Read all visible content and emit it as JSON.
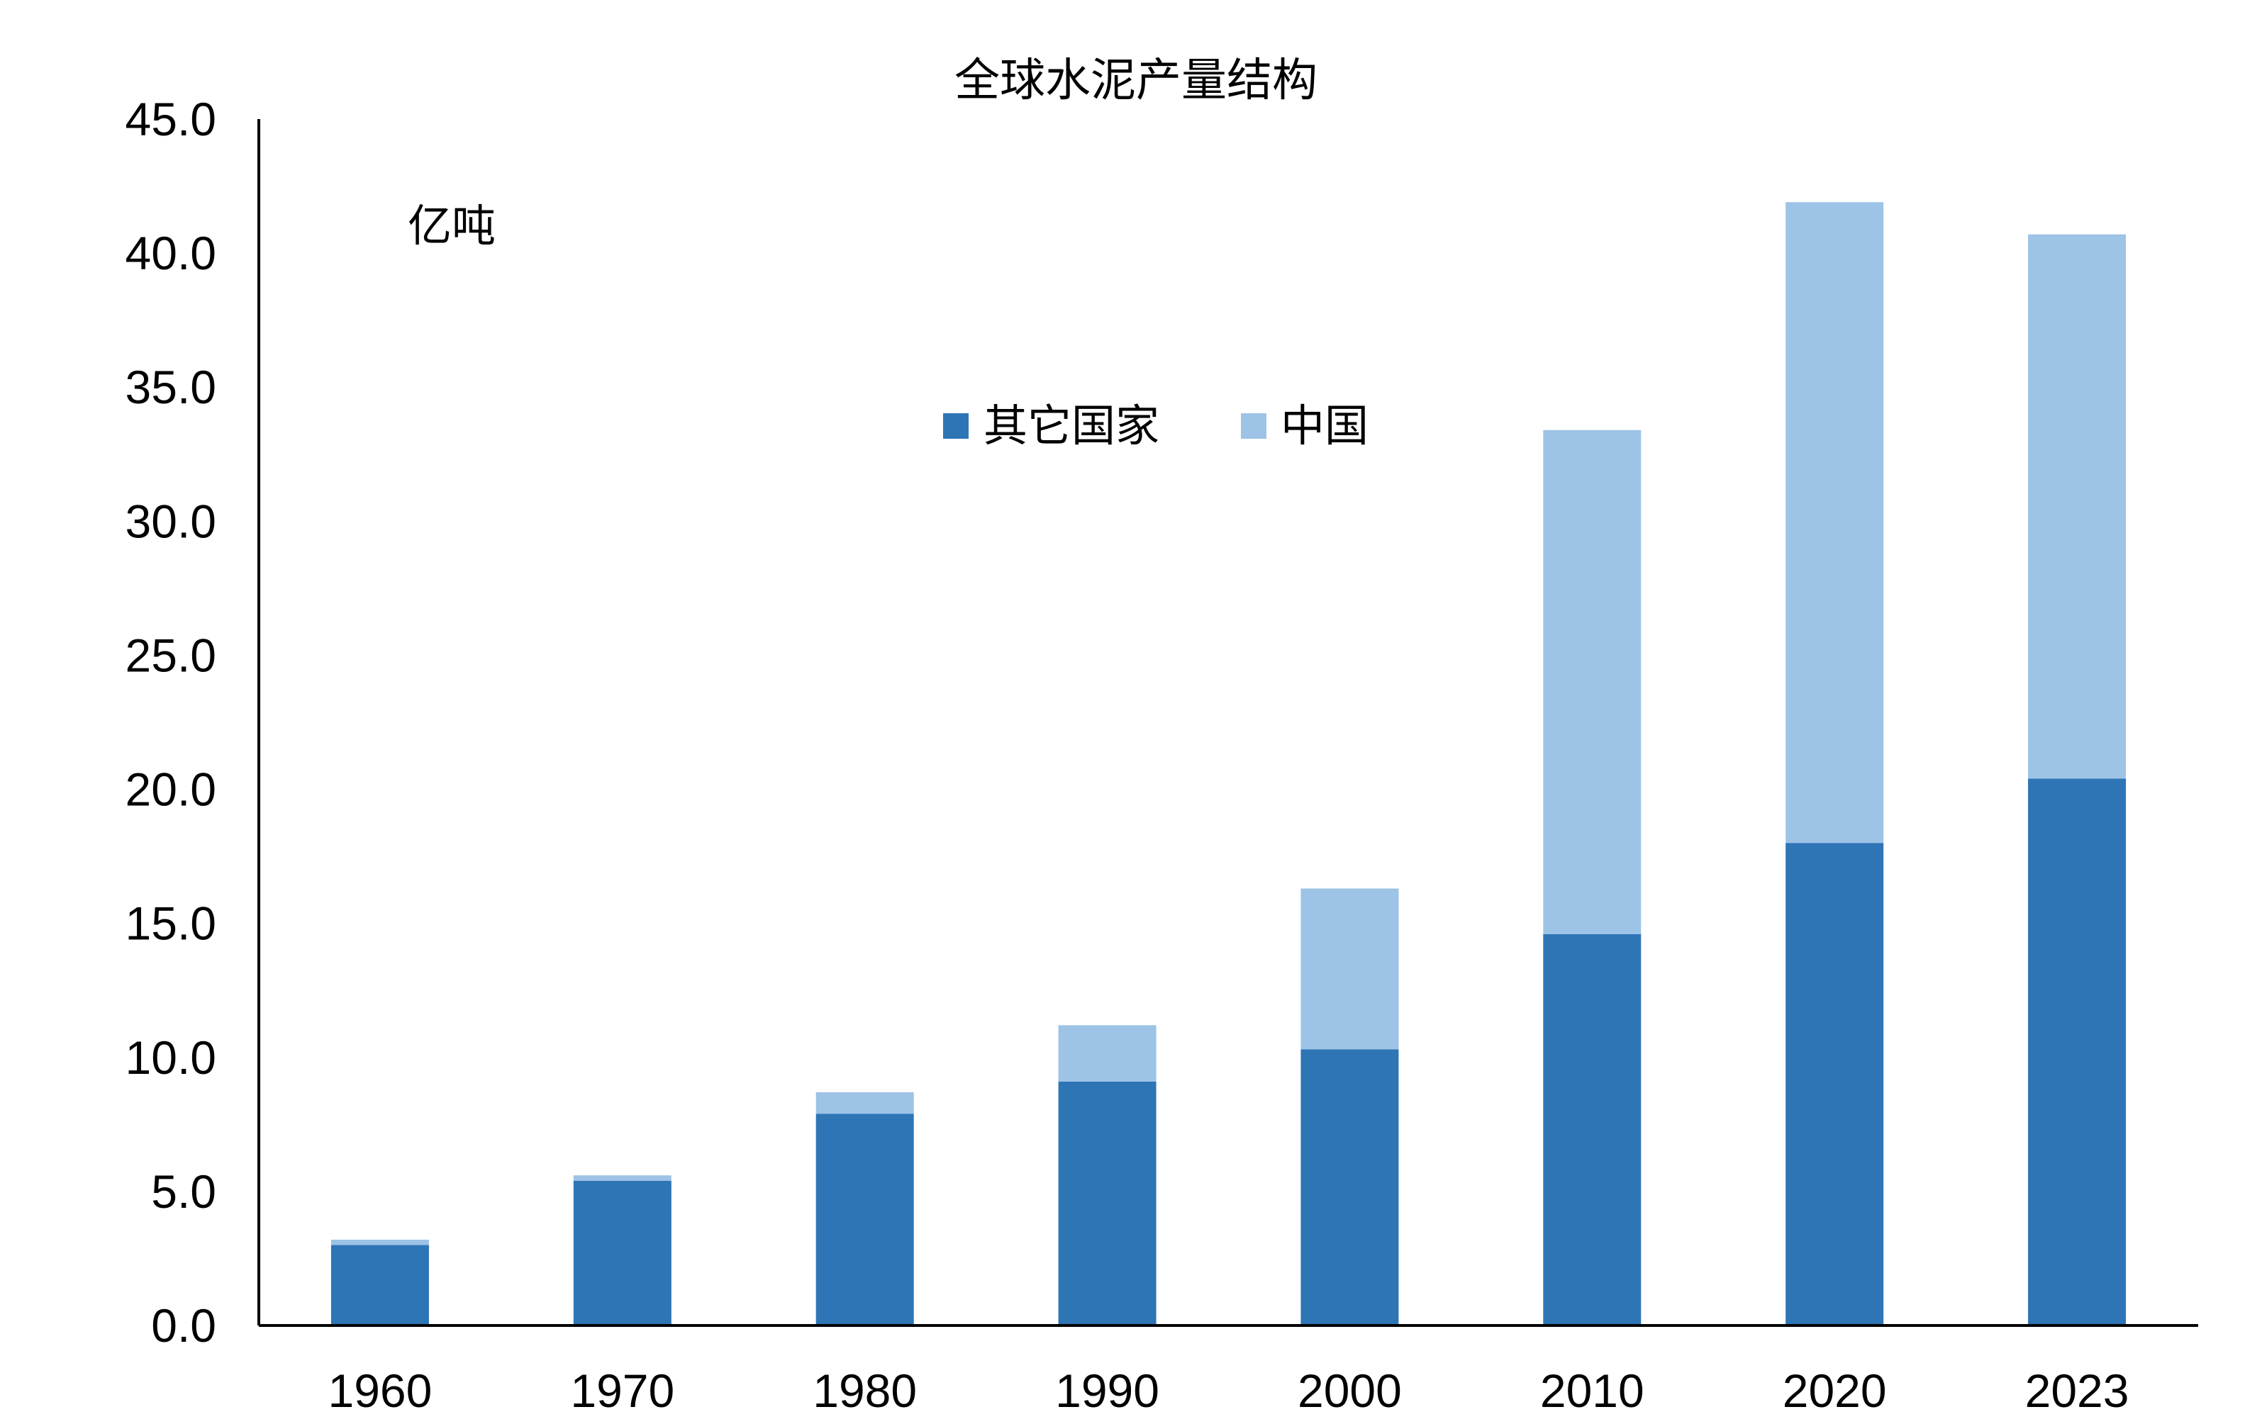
{
  "chart_data": {
    "type": "bar",
    "stacked": true,
    "title": "全球水泥产量结构",
    "unit_label": "亿吨",
    "categories": [
      "1960",
      "1970",
      "1980",
      "1990",
      "2000",
      "2010",
      "2020",
      "2023"
    ],
    "series": [
      {
        "name": "其它国家",
        "color": "#2E75B6",
        "values": [
          3.0,
          5.4,
          7.9,
          9.1,
          10.3,
          14.6,
          18.0,
          20.4
        ]
      },
      {
        "name": "中国",
        "color": "#9DC3E6",
        "values": [
          0.2,
          0.2,
          0.8,
          2.1,
          6.0,
          18.8,
          23.9,
          20.3
        ]
      }
    ],
    "yticks": [
      "0.0",
      "5.0",
      "10.0",
      "15.0",
      "20.0",
      "25.0",
      "30.0",
      "35.0",
      "40.0",
      "45.0"
    ],
    "ylim": [
      0,
      45
    ],
    "grid": false,
    "legend": "top-center"
  }
}
